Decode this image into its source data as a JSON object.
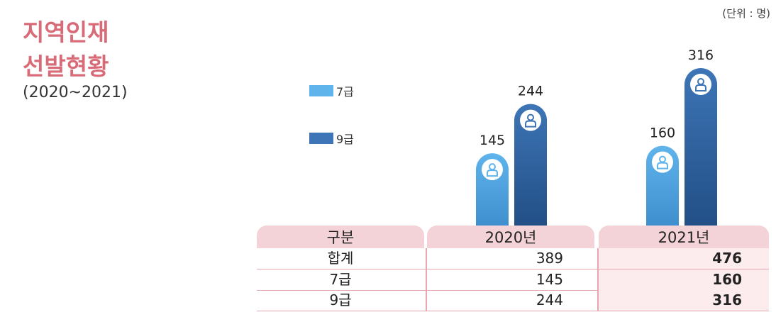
{
  "title": {
    "line1": "지역인재",
    "line2": "선발현황",
    "period": "(2020~2021)"
  },
  "unit": "(단위 : 명)",
  "legend": [
    {
      "label": "7급",
      "color": "#5fb4ec"
    },
    {
      "label": "9급",
      "color": "#3d75b6"
    }
  ],
  "colors": {
    "accent": "#d86b78",
    "header_bg": "#f3d3d7",
    "row_highlight": "#fdeced",
    "grade7": "#5fb4ec",
    "grade9": "#3d75b6"
  },
  "chart_data": {
    "type": "bar",
    "categories": [
      "2020년",
      "2021년"
    ],
    "series": [
      {
        "name": "7급",
        "values": [
          145,
          160
        ]
      },
      {
        "name": "9급",
        "values": [
          244,
          316
        ]
      }
    ],
    "title": "",
    "xlabel": "",
    "ylabel": "",
    "ylim": [
      0,
      316
    ],
    "legend": "top-left",
    "grid": false,
    "icon": "person-icon"
  },
  "table": {
    "headers": [
      "구분",
      "2020년",
      "2021년"
    ],
    "rows": [
      {
        "label": "합계",
        "y2020": "389",
        "y2021": "476"
      },
      {
        "label": "7급",
        "y2020": "145",
        "y2021": "160"
      },
      {
        "label": "9급",
        "y2020": "244",
        "y2021": "316"
      }
    ]
  }
}
